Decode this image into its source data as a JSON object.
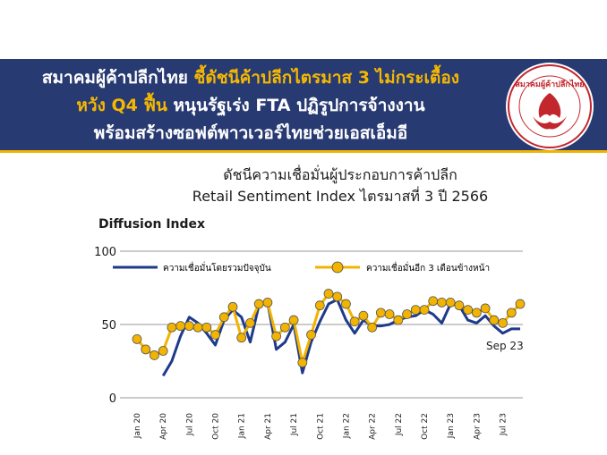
{
  "header": {
    "line1": "สมาคมผู้ค้าปลีกไทย",
    "line1_accent": " ชี้ดัชนีค้าปลีกไตรมาส 3 ไม่กระเตื้อง",
    "line2_accent": "หวัง Q4 ฟื้น",
    "line2": " หนุนรัฐเร่ง FTA ปฏิรูปการจ้างงาน",
    "line3": "พร้อมสร้างซอฟต์พาวเวอร์ไทยช่วยเอสเอ็มอี",
    "logo_text": "สมาคมผู้ค้าปลีกไทย"
  },
  "colors": {
    "banner": "#283a72",
    "accent": "#f5b800",
    "series_current": "#1f3a8a",
    "series_future": "#f2b400",
    "logo_red": "#c2272d"
  },
  "chart_data": {
    "type": "line",
    "title": "ดัชนีความเชื่อมั่นผู้ประกอบการค้าปลีก",
    "subtitle": "Retail Sentiment Index ไตรมาสที่ 3 ปี 2566",
    "ylabel": "Diffusion Index",
    "ylim": [
      0,
      100
    ],
    "yticks": [
      0,
      50,
      100
    ],
    "x": [
      "Jan 20",
      "Feb 20",
      "Mar 20",
      "Apr 20",
      "May 20",
      "Jun 20",
      "Jul 20",
      "Aug 20",
      "Sep 20",
      "Oct 20",
      "Nov 20",
      "Dec 20",
      "Jan 21",
      "Feb 21",
      "Mar 21",
      "Apr 21",
      "May 21",
      "Jun 21",
      "Jul 21",
      "Aug 21",
      "Sep 21",
      "Oct 21",
      "Nov 21",
      "Dec 21",
      "Jan 22",
      "Feb 22",
      "Mar 22",
      "Apr 22",
      "May 22",
      "Jun 22",
      "Jul 22",
      "Aug 22",
      "Sep 22",
      "Oct 22",
      "Nov 22",
      "Dec 22",
      "Jan 23",
      "Feb 23",
      "Mar 23",
      "Apr 23",
      "May 23",
      "Jun 23",
      "Jul 23",
      "Aug 23",
      "Sep 23"
    ],
    "xtick_labels": [
      "Jan 20",
      "Apr 20",
      "Jul 20",
      "Oct 20",
      "Jan 21",
      "Apr 21",
      "Jul 21",
      "Oct 21",
      "Jan 22",
      "Apr 22",
      "Jul 22",
      "Oct 22",
      "Jan 23",
      "Apr 23",
      "Jul 23"
    ],
    "series": [
      {
        "name": "ความเชื่อมั่นโดยรวมปัจจุบัน",
        "style": "line",
        "values": [
          null,
          null,
          null,
          15,
          25,
          42,
          55,
          51,
          44,
          36,
          53,
          60,
          55,
          38,
          63,
          65,
          33,
          38,
          50,
          17,
          38,
          52,
          64,
          67,
          53,
          44,
          53,
          49,
          49,
          50,
          53,
          55,
          56,
          60,
          57,
          51,
          64,
          63,
          53,
          51,
          56,
          49,
          44,
          47,
          47
        ]
      },
      {
        "name": "ความเชื่อมั่นอีก 3 เดือนข้างหน้า",
        "style": "line-markers",
        "values": [
          40,
          33,
          29,
          32,
          48,
          49,
          49,
          48,
          48,
          43,
          55,
          62,
          41,
          51,
          64,
          65,
          42,
          48,
          53,
          24,
          43,
          63,
          71,
          69,
          64,
          52,
          56,
          48,
          58,
          57,
          53,
          57,
          60,
          60,
          66,
          65,
          65,
          63,
          60,
          58,
          61,
          53,
          51,
          58,
          64
        ]
      }
    ],
    "annotations": [
      "Sep 23"
    ],
    "grid": false,
    "legend": "top"
  }
}
